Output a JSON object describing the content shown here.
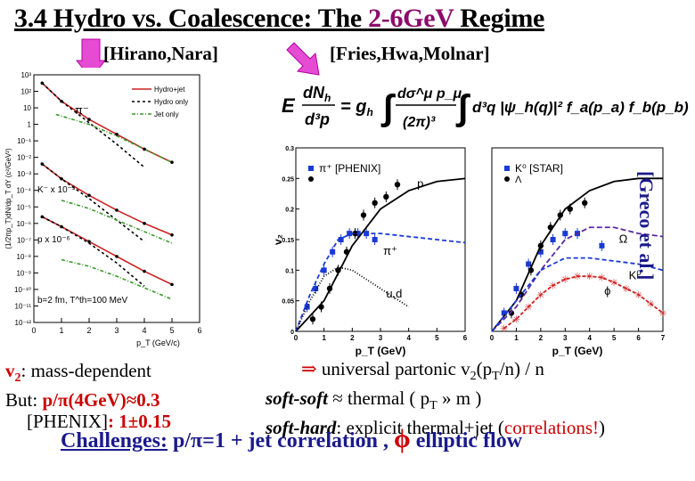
{
  "slide": {
    "title_prefix": "3.4 Hydro vs. Coalescence: The ",
    "title_highlight": "2-6GeV",
    "title_suffix": " Regime",
    "ref_left": "[Hirano,Nara]",
    "ref_right": "[Fries,Hwa,Molnar]",
    "ref_side": "[Greco et al.]",
    "left_text": {
      "line1_a": "v",
      "line1_sub": "2",
      "line1_b": ": mass-dependent",
      "line2_a": "But: ",
      "line2_b": "p/π(4GeV)≈0.3",
      "line3_a": "[PHENIX]",
      "line3_b": ": 1±0.15"
    },
    "right_text": {
      "line1_arrow": "⇒",
      "line1": " universal partonic  v",
      "line1_sub": "2",
      "line1_b": "(p",
      "line1_sub2": "T",
      "line1_c": "/n) / n",
      "line2_a": "soft-soft",
      "line2_b": " ≈ thermal  ( p",
      "line2_sub": "T",
      "line2_c": " » m )",
      "line3_a": "soft-hard",
      "line3_b": ": explicit thermal+jet (",
      "line3_c": "correlations!",
      "line3_d": ")"
    },
    "bottom": {
      "label": "Challenges:",
      "text1": "  p/π=1 + jet correlation ,  ",
      "phi": "ϕ",
      "text2": " elliptic flow"
    }
  },
  "equation": {
    "lhs": "E",
    "frac1_num": "dN",
    "frac1_num_sub": "h",
    "frac1_den": "d³p",
    "eq": "= g",
    "eq_sub": "h",
    "rest": "d³q |ψ_h(q)|² f_a(p_a) f_b(p_b)",
    "frac2_num": "dσ^μ p_μ",
    "frac2_den": "(2π)³"
  },
  "chart_data": [
    {
      "type": "line",
      "title": "",
      "xlabel": "p_T (GeV/c)",
      "ylabel": "(1/2πp_T)dN/dp_T dY (c²/GeV²)",
      "xlim": [
        0,
        6
      ],
      "x_ticks": [
        "0",
        "1",
        "2",
        "3",
        "4",
        "5",
        "6"
      ],
      "y_ticks": [
        "10³",
        "10²",
        "10",
        "1",
        "10⁻¹",
        "10⁻²",
        "10⁻³",
        "10⁻⁴",
        "10⁻⁵",
        "10⁻⁶",
        "10⁻⁷",
        "10⁻⁸",
        "10⁻⁹",
        "10⁻¹⁰",
        "10⁻¹¹",
        "10⁻¹²"
      ],
      "legend": [
        "Hydro+jet",
        "Hydro only",
        "Jet only"
      ],
      "legend_placement": "top-right",
      "panel_labels": [
        "π⁻",
        "K⁻ x 10⁻³",
        "p x 10⁻⁶"
      ],
      "annotation": "b=2 fm, T^th=100 MeV",
      "series": [
        {
          "name": "Hydro+jet",
          "group": "pi",
          "x": [
            0.3,
            1,
            2,
            3,
            4,
            5
          ],
          "y": [
            2.5,
            1.4,
            0.3,
            -0.6,
            -1.5,
            -2.3
          ]
        },
        {
          "name": "Hydro only",
          "group": "pi",
          "x": [
            0.3,
            1,
            2,
            3,
            4
          ],
          "y": [
            2.5,
            1.4,
            0.1,
            -1.2,
            -2.6
          ]
        },
        {
          "name": "Jet only",
          "group": "pi",
          "x": [
            0.8,
            2,
            3,
            4,
            5
          ],
          "y": [
            0.6,
            0.0,
            -0.7,
            -1.5,
            -2.3
          ]
        },
        {
          "name": "Hydro+jet",
          "group": "K",
          "x": [
            0.3,
            1,
            2,
            3,
            4,
            5
          ],
          "y": [
            -2.4,
            -3.3,
            -4.3,
            -5.2,
            -6.0,
            -6.7
          ]
        },
        {
          "name": "Hydro only",
          "group": "K",
          "x": [
            0.3,
            1,
            2,
            3,
            4
          ],
          "y": [
            -2.4,
            -3.3,
            -4.5,
            -5.8,
            -7.1
          ]
        },
        {
          "name": "Jet only",
          "group": "K",
          "x": [
            1,
            2,
            3,
            4,
            5
          ],
          "y": [
            -4.6,
            -5.1,
            -5.8,
            -6.5,
            -7.2
          ]
        },
        {
          "name": "Hydro+jet",
          "group": "p",
          "x": [
            0.3,
            1,
            2,
            3,
            4,
            5
          ],
          "y": [
            -5.6,
            -6.2,
            -7.1,
            -8.0,
            -8.9,
            -9.7
          ]
        },
        {
          "name": "Hydro only",
          "group": "p",
          "x": [
            0.3,
            1,
            2,
            3,
            4
          ],
          "y": [
            -5.6,
            -6.2,
            -7.2,
            -8.4,
            -9.8
          ]
        },
        {
          "name": "Jet only",
          "group": "p",
          "x": [
            1,
            2,
            3,
            4,
            5
          ],
          "y": [
            -8.2,
            -8.6,
            -9.2,
            -9.9,
            -10.6
          ]
        }
      ]
    },
    {
      "type": "scatter",
      "title": "",
      "xlabel": "p_T (GeV)",
      "ylabel": "v₂",
      "xlim": [
        0,
        6
      ],
      "ylim": [
        0,
        0.3
      ],
      "x_ticks": [
        "0",
        "1",
        "2",
        "3",
        "4",
        "5",
        "6"
      ],
      "y_ticks": [
        "0",
        "0.05",
        "0.1",
        "0.15",
        "0.2",
        "0.25",
        "0.3"
      ],
      "legend": [
        "π⁺ [PHENIX]",
        "p"
      ],
      "curve_labels": [
        "p",
        "π⁺",
        "u,d"
      ],
      "series": [
        {
          "name": "π⁺",
          "marker": "square",
          "x": [
            0.4,
            0.7,
            1.0,
            1.3,
            1.6,
            1.9,
            2.2,
            2.5,
            2.8
          ],
          "y": [
            0.04,
            0.07,
            0.1,
            0.13,
            0.15,
            0.16,
            0.16,
            0.16,
            0.15
          ]
        },
        {
          "name": "p",
          "marker": "circle",
          "x": [
            0.6,
            0.9,
            1.2,
            1.5,
            1.8,
            2.1,
            2.4,
            2.8,
            3.2,
            3.6
          ],
          "y": [
            0.02,
            0.04,
            0.07,
            0.1,
            0.13,
            0.16,
            0.19,
            0.21,
            0.22,
            0.24
          ]
        },
        {
          "name": "p curve",
          "marker": "none",
          "x": [
            0,
            1,
            2,
            3,
            4,
            5,
            6
          ],
          "y": [
            0,
            0.05,
            0.14,
            0.2,
            0.23,
            0.245,
            0.25
          ]
        },
        {
          "name": "π⁺ curve",
          "marker": "none",
          "x": [
            0,
            0.5,
            1,
            1.5,
            2,
            3,
            4,
            5,
            6
          ],
          "y": [
            0,
            0.06,
            0.11,
            0.15,
            0.16,
            0.16,
            0.155,
            0.15,
            0.145
          ]
        },
        {
          "name": "u,d",
          "marker": "none",
          "x": [
            0,
            0.5,
            1,
            1.5,
            2,
            3,
            4
          ],
          "y": [
            0,
            0.05,
            0.09,
            0.105,
            0.1,
            0.07,
            0.04
          ]
        }
      ]
    },
    {
      "type": "scatter",
      "title": "",
      "xlabel": "p_T (GeV)",
      "ylabel": "",
      "xlim": [
        0,
        7
      ],
      "ylim": [
        0,
        0.3
      ],
      "x_ticks": [
        "0",
        "1",
        "2",
        "3",
        "4",
        "5",
        "6",
        "7"
      ],
      "legend": [
        "K⁰ [STAR]",
        "Λ"
      ],
      "curve_labels": [
        "Ω",
        "K⁰",
        "ϕ"
      ],
      "series": [
        {
          "name": "K⁰",
          "marker": "square",
          "x": [
            0.5,
            1.0,
            1.5,
            2.0,
            2.5,
            3.0,
            3.5,
            4.5
          ],
          "y": [
            0.03,
            0.07,
            0.11,
            0.13,
            0.15,
            0.16,
            0.16,
            0.14
          ]
        },
        {
          "name": "Λ",
          "marker": "circle",
          "x": [
            0.8,
            1.2,
            1.6,
            2.0,
            2.4,
            2.8,
            3.2,
            3.8
          ],
          "y": [
            0.03,
            0.06,
            0.1,
            0.14,
            0.17,
            0.19,
            0.2,
            0.21
          ]
        },
        {
          "name": "Λ curve",
          "marker": "none",
          "x": [
            0,
            1,
            2,
            3,
            4,
            5,
            6,
            7
          ],
          "y": [
            0,
            0.05,
            0.14,
            0.2,
            0.23,
            0.245,
            0.25,
            0.25
          ]
        },
        {
          "name": "Ω",
          "marker": "none",
          "x": [
            0,
            1,
            2,
            3,
            4,
            5,
            6,
            7
          ],
          "y": [
            0,
            0.04,
            0.1,
            0.15,
            0.17,
            0.17,
            0.16,
            0.155
          ]
        },
        {
          "name": "K⁰ curve",
          "marker": "none",
          "x": [
            0,
            1,
            2,
            3,
            4,
            5,
            6,
            7
          ],
          "y": [
            0,
            0.05,
            0.1,
            0.12,
            0.12,
            0.115,
            0.11,
            0.1
          ]
        },
        {
          "name": "ϕ",
          "marker": "star",
          "x": [
            0.5,
            1,
            1.5,
            2,
            2.5,
            3,
            3.5,
            4,
            4.5,
            5,
            5.5,
            6,
            6.5,
            7
          ],
          "y": [
            0.005,
            0.02,
            0.04,
            0.06,
            0.075,
            0.085,
            0.09,
            0.09,
            0.088,
            0.08,
            0.07,
            0.06,
            0.045,
            0.03
          ]
        }
      ]
    }
  ]
}
